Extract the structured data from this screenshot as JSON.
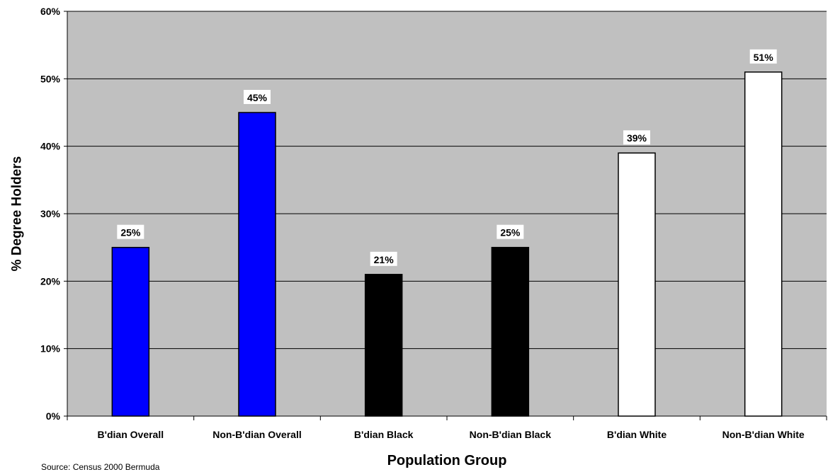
{
  "chart_data": {
    "type": "bar",
    "title": "",
    "xlabel": "Population Group",
    "ylabel": "% Degree Holders",
    "categories": [
      "B'dian Overall",
      "Non-B'dian Overall",
      "B'dian Black",
      "Non-B'dian Black",
      "B'dian White",
      "Non-B'dian White"
    ],
    "values": [
      25,
      45,
      21,
      25,
      39,
      51
    ],
    "data_labels": [
      "25%",
      "45%",
      "21%",
      "25%",
      "39%",
      "51%"
    ],
    "bar_colors": [
      "#0000ff",
      "#0000ff",
      "#000000",
      "#000000",
      "#ffffff",
      "#ffffff"
    ],
    "ylim": [
      0,
      60
    ],
    "yticks": [
      0,
      10,
      20,
      30,
      40,
      50,
      60
    ],
    "ytick_labels": [
      "0%",
      "10%",
      "20%",
      "30%",
      "40%",
      "50%",
      "60%"
    ],
    "grid": true,
    "plot_background": "#c0c0c0",
    "legend": "none"
  },
  "source_note": "Source: Census 2000 Bermuda"
}
